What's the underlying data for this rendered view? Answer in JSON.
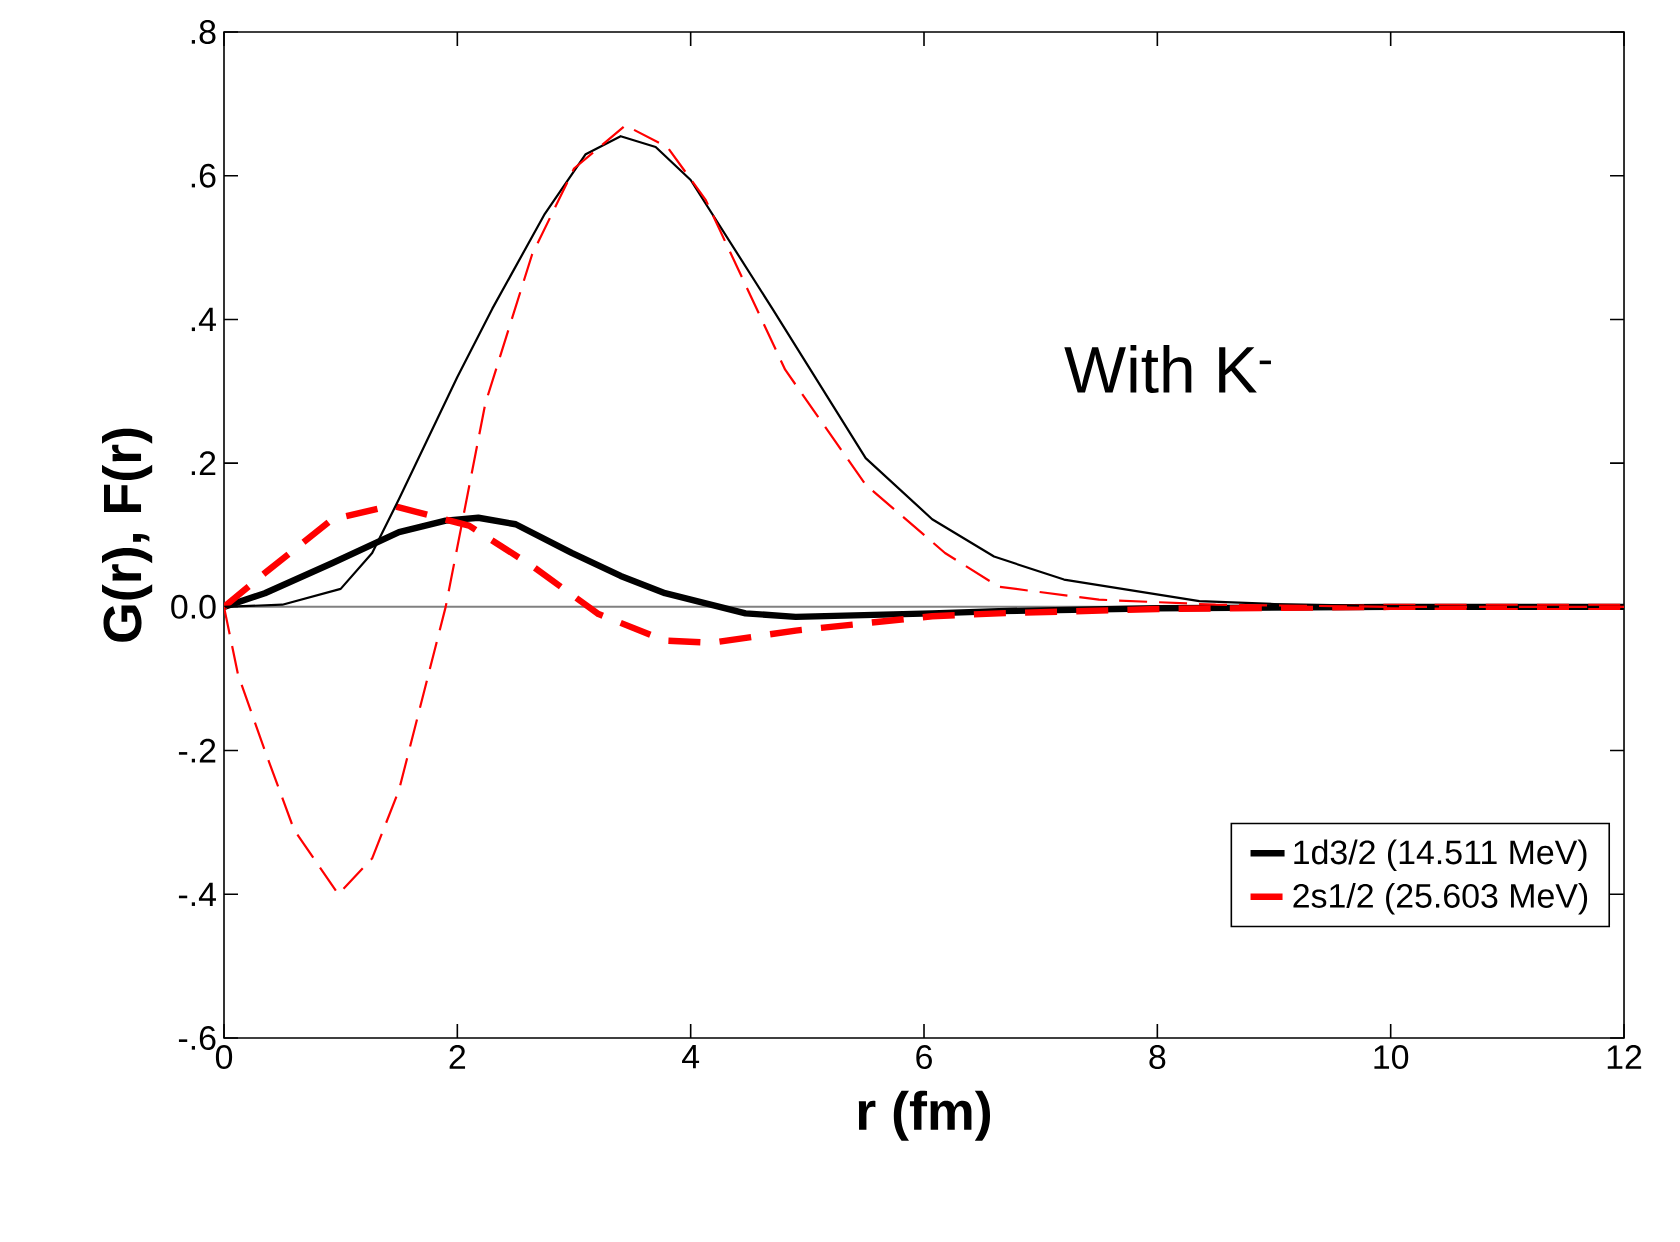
{
  "chart_data": {
    "type": "line",
    "xlabel": "r (fm)",
    "ylabel": "G(r),  F(r)",
    "xlim": [
      0,
      12
    ],
    "ylim": [
      -0.6,
      0.8
    ],
    "xticks": [
      0,
      2,
      4,
      6,
      8,
      10,
      12
    ],
    "yticks": [
      {
        "value": -0.6,
        "label": "-.6"
      },
      {
        "value": -0.4,
        "label": "-.4"
      },
      {
        "value": -0.2,
        "label": "-.2"
      },
      {
        "value": 0,
        "label": "0.0"
      },
      {
        "value": 0.2,
        "label": ".2"
      },
      {
        "value": 0.4,
        "label": ".4"
      },
      {
        "value": 0.6,
        "label": ".6"
      },
      {
        "value": 0.8,
        "label": ".8"
      }
    ],
    "legend": "bottom right",
    "marker": "none",
    "annotations": [
      "With K$^{-}$"
    ],
    "ref_lines": [
      {
        "axis": "y",
        "value": 0,
        "color": "#808080"
      }
    ],
    "series": [
      {
        "name": "1d3/2 (14.511 MeV)",
        "color": "#000000",
        "line_style": "solid",
        "x": [
          0,
          0.35,
          0.93,
          1.5,
          1.9,
          2.18,
          2.5,
          2.98,
          3.4,
          3.78,
          4.47,
          4.9,
          6.07,
          6.64,
          8,
          10,
          12
        ],
        "values": [
          0,
          0.019,
          0.061,
          0.104,
          0.12,
          0.124,
          0.115,
          0.075,
          0.043,
          0.019,
          -0.009,
          -0.014,
          -0.009,
          -0.006,
          -0.002,
          0,
          0
        ]
      },
      {
        "name": "2s1/2 (25.603 MeV)",
        "color": "#ff0000",
        "line_style": "dashed",
        "x": [
          0,
          0.35,
          0.93,
          1.44,
          2.1,
          2.64,
          3.21,
          3.78,
          4.18,
          4.9,
          6.07,
          6.64,
          8,
          10,
          12
        ],
        "values": [
          0,
          0.047,
          0.122,
          0.141,
          0.113,
          0.057,
          -0.01,
          -0.047,
          -0.05,
          -0.033,
          -0.013,
          -0.009,
          -0.003,
          0,
          0
        ]
      },
      {
        "color": "#000000",
        "line_style": "solid",
        "x": [
          0,
          0.5,
          1,
          1.27,
          1.5,
          2,
          2.3,
          2.75,
          3.1,
          3.4,
          3.7,
          4,
          4.7,
          5.5,
          6.07,
          6.6,
          7.2,
          8.36,
          9,
          10,
          11,
          12
        ],
        "values": [
          0,
          0.003,
          0.025,
          0.075,
          0.15,
          0.32,
          0.415,
          0.547,
          0.63,
          0.655,
          0.64,
          0.594,
          0.415,
          0.207,
          0.122,
          0.07,
          0.038,
          0.008,
          0.004,
          0.001,
          0,
          0
        ]
      },
      {
        "color": "#ff0000",
        "line_style": "dashed",
        "x": [
          0,
          0.12,
          0.35,
          0.6,
          0.98,
          1.27,
          1.5,
          1.9,
          2.24,
          2.64,
          3.0,
          3.44,
          3.8,
          4.13,
          4.81,
          5.5,
          6.18,
          6.64,
          7.5,
          8.5,
          10,
          12
        ],
        "values": [
          0,
          -0.094,
          -0.2,
          -0.31,
          -0.4,
          -0.35,
          -0.255,
          0,
          0.283,
          0.49,
          0.61,
          0.67,
          0.64,
          0.566,
          0.33,
          0.17,
          0.075,
          0.028,
          0.01,
          0.003,
          0,
          0
        ]
      }
    ]
  }
}
